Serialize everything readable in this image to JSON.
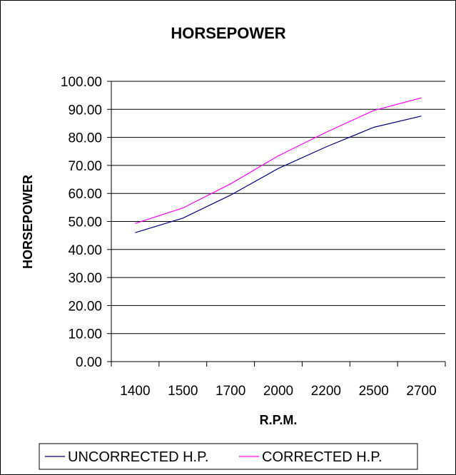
{
  "chart_data": {
    "type": "line",
    "title": "HORSEPOWER",
    "xlabel": "R.P.M.",
    "ylabel": "HORSEPOWER",
    "categories": [
      "1400",
      "1500",
      "1700",
      "2000",
      "2200",
      "2500",
      "2700"
    ],
    "ylim": [
      0,
      100
    ],
    "ytick_step": 10,
    "ytick_decimals": 2,
    "grid": true,
    "legend_position": "bottom",
    "series": [
      {
        "name": "UNCORRECTED H.P.",
        "color": "#000080",
        "values": [
          46.0,
          51.2,
          59.4,
          68.9,
          76.6,
          83.6,
          87.6
        ]
      },
      {
        "name": "CORRECTED H.P.",
        "color": "#ff00ff",
        "values": [
          49.3,
          54.8,
          63.4,
          73.4,
          81.8,
          89.6,
          94.1
        ]
      }
    ]
  }
}
